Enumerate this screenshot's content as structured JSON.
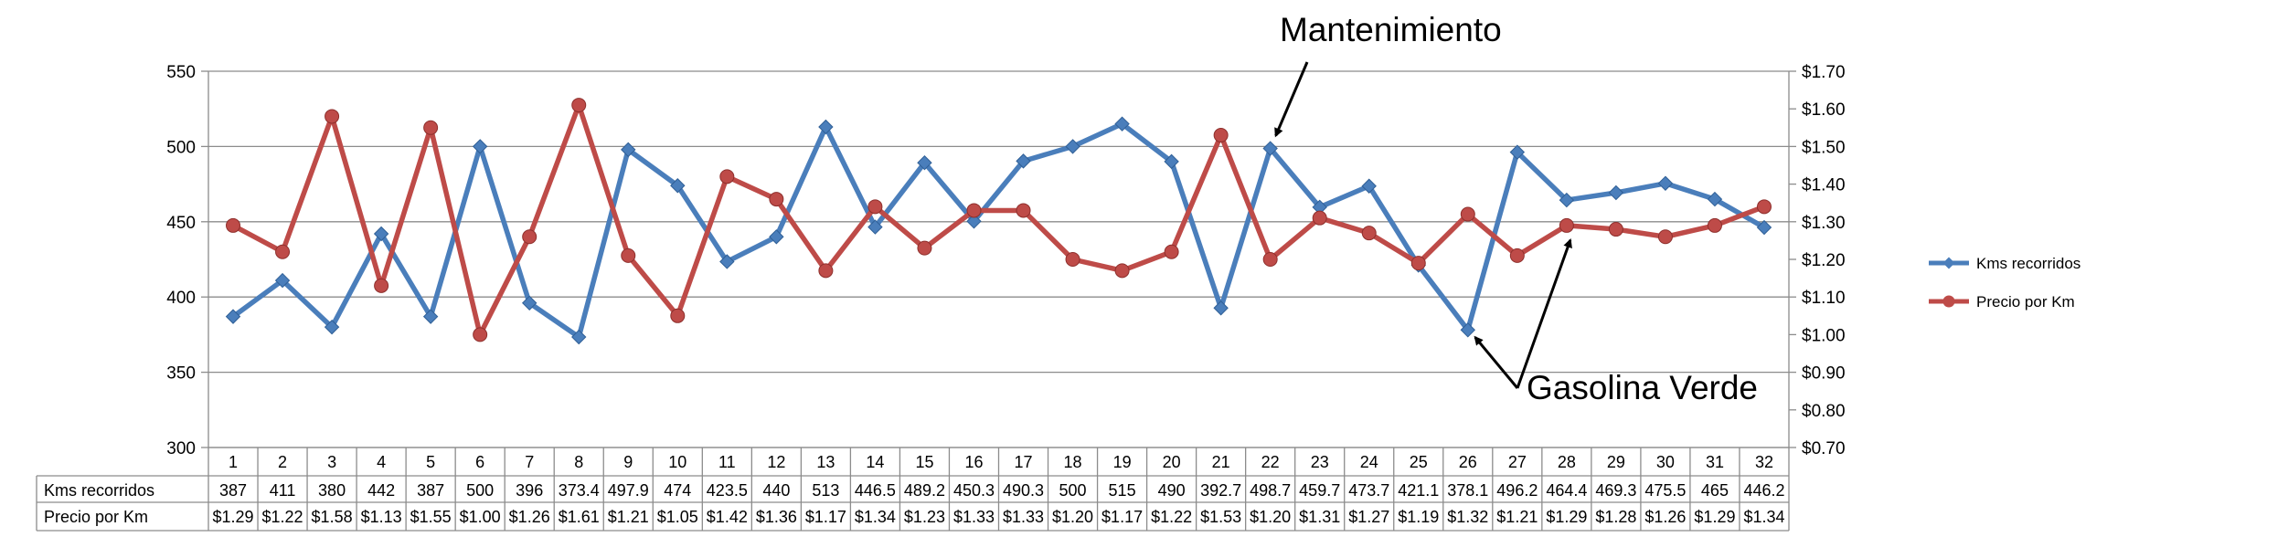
{
  "chart_data": {
    "type": "line",
    "categories": [
      "1",
      "2",
      "3",
      "4",
      "5",
      "6",
      "7",
      "8",
      "9",
      "10",
      "11",
      "12",
      "13",
      "14",
      "15",
      "16",
      "17",
      "18",
      "19",
      "20",
      "21",
      "22",
      "23",
      "24",
      "25",
      "26",
      "27",
      "28",
      "29",
      "30",
      "31",
      "32"
    ],
    "series": [
      {
        "name": "Kms recorridos",
        "axis": "left",
        "color": "#4a7ebb",
        "values": [
          387,
          411,
          380,
          442,
          387,
          500,
          396,
          373.4,
          497.9,
          474,
          423.5,
          440,
          513,
          446.5,
          489.2,
          450.3,
          490.3,
          500,
          515,
          490,
          392.7,
          498.7,
          459.7,
          473.7,
          421.1,
          378.1,
          496.2,
          464.4,
          469.3,
          475.5,
          465,
          446.2
        ],
        "labels": [
          "387",
          "411",
          "380",
          "442",
          "387",
          "500",
          "396",
          "373.4",
          "497.9",
          "474",
          "423.5",
          "440",
          "513",
          "446.5",
          "489.2",
          "450.3",
          "490.3",
          "500",
          "515",
          "490",
          "392.7",
          "498.7",
          "459.7",
          "473.7",
          "421.1",
          "378.1",
          "496.2",
          "464.4",
          "469.3",
          "475.5",
          "465",
          "446.2"
        ]
      },
      {
        "name": "Precio por Km",
        "axis": "right",
        "color": "#be4b48",
        "values": [
          1.29,
          1.22,
          1.58,
          1.13,
          1.55,
          1.0,
          1.26,
          1.61,
          1.21,
          1.05,
          1.42,
          1.36,
          1.17,
          1.34,
          1.23,
          1.33,
          1.33,
          1.2,
          1.17,
          1.22,
          1.53,
          1.2,
          1.31,
          1.27,
          1.19,
          1.32,
          1.21,
          1.29,
          1.28,
          1.26,
          1.29,
          1.34
        ],
        "labels": [
          "$1.29",
          "$1.22",
          "$1.58",
          "$1.13",
          "$1.55",
          "$1.00",
          "$1.26",
          "$1.61",
          "$1.21",
          "$1.05",
          "$1.42",
          "$1.36",
          "$1.17",
          "$1.34",
          "$1.23",
          "$1.33",
          "$1.33",
          "$1.20",
          "$1.17",
          "$1.22",
          "$1.53",
          "$1.20",
          "$1.31",
          "$1.27",
          "$1.19",
          "$1.32",
          "$1.21",
          "$1.29",
          "$1.28",
          "$1.26",
          "$1.29",
          "$1.34"
        ]
      }
    ],
    "ylim_left": [
      300,
      550
    ],
    "yticks_left": [
      "550",
      "500",
      "450",
      "400",
      "350",
      "300"
    ],
    "ylim_right": [
      0.7,
      1.7
    ],
    "yticks_right": [
      "$1.70",
      "$1.60",
      "$1.50",
      "$1.40",
      "$1.30",
      "$1.20",
      "$1.10",
      "$1.00",
      "$0.90",
      "$0.80",
      "$0.70"
    ],
    "grid": "horizontal",
    "legend": "right",
    "data_table": true,
    "annotations": [
      {
        "text": "Mantenimiento",
        "category": "22",
        "series": "Kms recorridos"
      },
      {
        "text": "Gasolina Verde",
        "category": "26",
        "series": "Kms recorridos"
      },
      {
        "text": "",
        "category": "28",
        "series": "Precio por Km"
      }
    ]
  }
}
